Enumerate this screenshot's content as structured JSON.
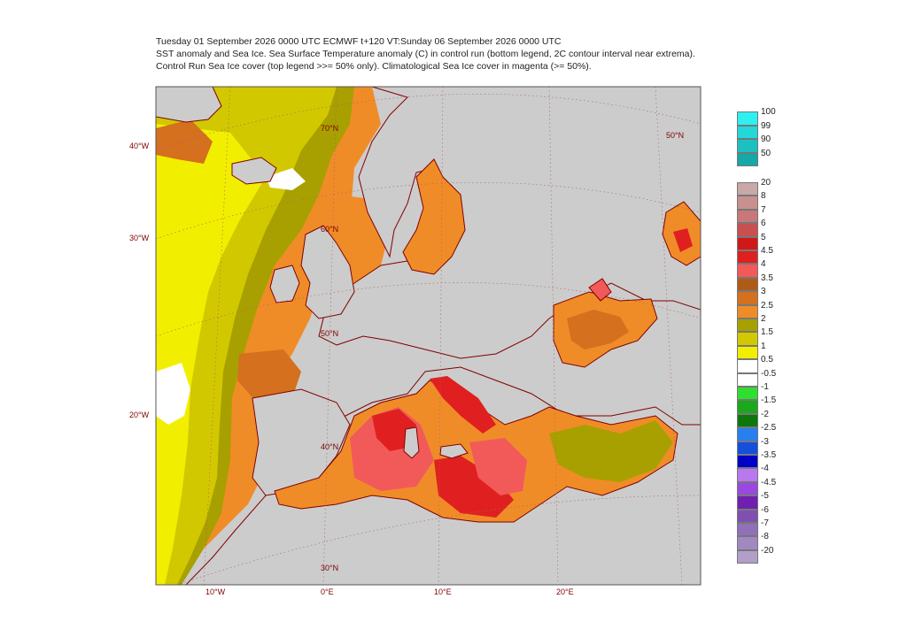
{
  "header": {
    "line1": "Tuesday 01 September 2026 0000 UTC  ECMWF  t+120  VT:Sunday 06 September 2026 0000 UTC",
    "line2": "SST anomaly and Sea Ice. Sea Surface Temperature anomaly (C) in control run (bottom legend, 2C contour interval near extrema).",
    "line3": "Control Run Sea Ice cover (top legend >>= 50% only). Climatological Sea Ice cover in magenta (>= 50%)."
  },
  "map": {
    "latitude_labels": [
      "70°N",
      "60°N",
      "50°N",
      "40°N",
      "30°N",
      "50°N"
    ],
    "longitude_labels_left": [
      "40°W",
      "30°W",
      "20°W"
    ],
    "longitude_labels_bottom": [
      "10°W",
      "0°E",
      "10°E",
      "20°E"
    ],
    "land_color": "#cccccc",
    "coast_color": "#800000"
  },
  "legend_ice": {
    "labels": [
      "100",
      "99",
      "90",
      "50"
    ],
    "colors": [
      "#2ef0f0",
      "#22d8d8",
      "#1cc0c0",
      "#14a8a8"
    ]
  },
  "legend_sst": {
    "labels": [
      "20",
      "8",
      "7",
      "6",
      "5",
      "4.5",
      "4",
      "3.5",
      "3",
      "2.5",
      "2",
      "1.5",
      "1",
      "0.5",
      "-0.5",
      "-1",
      "-1.5",
      "-2",
      "-2.5",
      "-3",
      "-3.5",
      "-4",
      "-4.5",
      "-5",
      "-6",
      "-7",
      "-8",
      "-20"
    ],
    "colors": [
      "#c8a8a8",
      "#c89090",
      "#c87878",
      "#c85050",
      "#d01818",
      "#e02020",
      "#f25a5a",
      "#b05a18",
      "#d4701e",
      "#f08c28",
      "#a8a000",
      "#d2c800",
      "#f2ee00",
      "#ffffff",
      "#ffffff",
      "#2ee02e",
      "#1ca81c",
      "#0c780c",
      "#2880f0",
      "#1450dc",
      "#0000c8",
      "#b878f0",
      "#9a48e0",
      "#7020b0",
      "#8050b0",
      "#9070b8",
      "#a088c0",
      "#b0a0c8"
    ]
  }
}
